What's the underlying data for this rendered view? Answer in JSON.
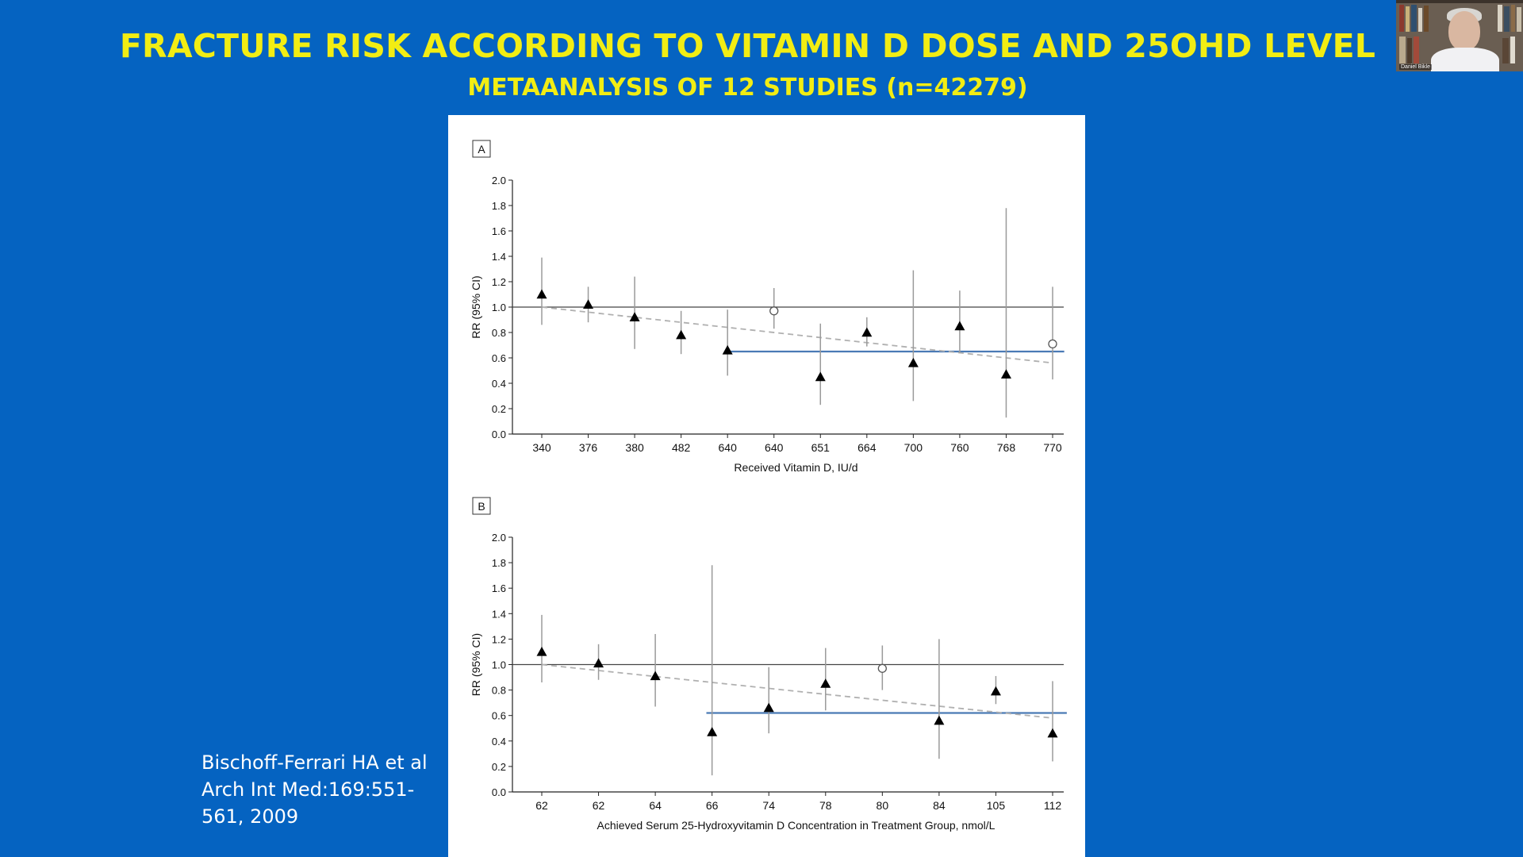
{
  "slide": {
    "title": "FRACTURE RISK ACCORDING TO VITAMIN D DOSE AND 25OHD LEVEL",
    "subtitle": "METAANALYSIS OF 12 STUDIES (n=42279)",
    "citation_lines": [
      "Bischoff-Ferrari HA et al",
      "Arch Int Med:169:551-",
      "561, 2009"
    ]
  },
  "webcam": {
    "participant_name": "Daniel Bikle"
  },
  "colors": {
    "background": "#0563c1",
    "title": "#f2ed13",
    "pooled_line": "#4a7ab5",
    "trend_line": "#b0b0b0"
  },
  "chart_data": [
    {
      "type": "scatter",
      "panel_label": "A",
      "xlabel": "Received Vitamin D, IU/d",
      "ylabel": "RR (95% CI)",
      "ylim": [
        0,
        2.0
      ],
      "yticks": [
        "0.0",
        "0.2",
        "0.4",
        "0.6",
        "0.8",
        "1.0",
        "1.2",
        "1.4",
        "1.6",
        "1.8",
        "2.0"
      ],
      "categories": [
        "340",
        "376",
        "380",
        "482",
        "640",
        "640",
        "651",
        "664",
        "700",
        "760",
        "768",
        "770"
      ],
      "points": [
        {
          "rr": 1.1,
          "lo": 0.86,
          "hi": 1.39,
          "marker": "triangle"
        },
        {
          "rr": 1.02,
          "lo": 0.88,
          "hi": 1.16,
          "marker": "triangle"
        },
        {
          "rr": 0.92,
          "lo": 0.67,
          "hi": 1.24,
          "marker": "triangle"
        },
        {
          "rr": 0.78,
          "lo": 0.63,
          "hi": 0.97,
          "marker": "triangle"
        },
        {
          "rr": 0.66,
          "lo": 0.46,
          "hi": 0.98,
          "marker": "triangle"
        },
        {
          "rr": 0.97,
          "lo": 0.83,
          "hi": 1.15,
          "marker": "circle"
        },
        {
          "rr": 0.45,
          "lo": 0.23,
          "hi": 0.87,
          "marker": "triangle"
        },
        {
          "rr": 0.8,
          "lo": 0.69,
          "hi": 0.92,
          "marker": "triangle"
        },
        {
          "rr": 0.56,
          "lo": 0.26,
          "hi": 1.29,
          "marker": "triangle"
        },
        {
          "rr": 0.85,
          "lo": 0.64,
          "hi": 1.13,
          "marker": "triangle"
        },
        {
          "rr": 0.47,
          "lo": 0.13,
          "hi": 1.78,
          "marker": "triangle"
        },
        {
          "rr": 0.71,
          "lo": 0.43,
          "hi": 1.16,
          "marker": "circle"
        }
      ],
      "reference_line": 1.0,
      "pooled_line": {
        "value": 0.65,
        "from_index": 4,
        "to_index": 11.25
      },
      "trend_line": {
        "from_index": 0,
        "to_index": 11,
        "start": 1.0,
        "end": 0.56
      }
    },
    {
      "type": "scatter",
      "panel_label": "B",
      "xlabel": "Achieved Serum 25-Hydroxyvitamin D Concentration in Treatment Group, nmol/L",
      "ylabel": "RR (95% CI)",
      "ylim": [
        0,
        2.0
      ],
      "yticks": [
        "0.0",
        "0.2",
        "0.4",
        "0.6",
        "0.8",
        "1.0",
        "1.2",
        "1.4",
        "1.6",
        "1.8",
        "2.0"
      ],
      "categories": [
        "62",
        "62",
        "64",
        "66",
        "74",
        "78",
        "80",
        "84",
        "105",
        "112"
      ],
      "points": [
        {
          "rr": 1.1,
          "lo": 0.86,
          "hi": 1.39,
          "marker": "triangle"
        },
        {
          "rr": 1.01,
          "lo": 0.88,
          "hi": 1.16,
          "marker": "triangle"
        },
        {
          "rr": 0.91,
          "lo": 0.67,
          "hi": 1.24,
          "marker": "triangle"
        },
        {
          "rr": 0.47,
          "lo": 0.13,
          "hi": 1.78,
          "marker": "triangle"
        },
        {
          "rr": 0.66,
          "lo": 0.46,
          "hi": 0.98,
          "marker": "triangle"
        },
        {
          "rr": 0.85,
          "lo": 0.64,
          "hi": 1.13,
          "marker": "triangle"
        },
        {
          "rr": 0.97,
          "lo": 0.8,
          "hi": 1.15,
          "marker": "circle"
        },
        {
          "rr": 0.56,
          "lo": 0.26,
          "hi": 1.2,
          "marker": "triangle"
        },
        {
          "rr": 0.79,
          "lo": 0.69,
          "hi": 0.91,
          "marker": "triangle"
        },
        {
          "rr": 0.46,
          "lo": 0.24,
          "hi": 0.87,
          "marker": "triangle"
        }
      ],
      "reference_line": 1.0,
      "pooled_line": {
        "value": 0.62,
        "from_index": 2.9,
        "to_index": 9.25
      },
      "trend_line": {
        "from_index": 0,
        "to_index": 9,
        "start": 1.0,
        "end": 0.58
      }
    }
  ]
}
